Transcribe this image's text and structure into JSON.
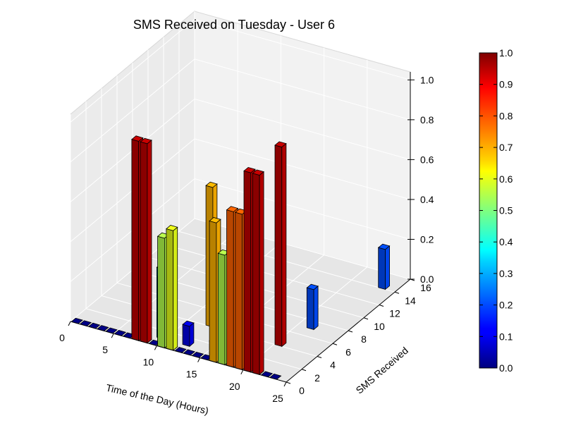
{
  "chart_data": {
    "type": "bar3d",
    "title": "SMS Received on Tuesday - User 6",
    "xlabel": "Time of the Day (Hours)",
    "ylabel": "SMS Received",
    "zlabel": "",
    "x_ticks": [
      "0",
      "5",
      "10",
      "15",
      "20",
      "25"
    ],
    "y_ticks": [
      "0",
      "2",
      "4",
      "6",
      "8",
      "10",
      "12",
      "14",
      "16"
    ],
    "z_ticks": [
      "0.0",
      "0.2",
      "0.4",
      "0.6",
      "0.8",
      "1.0"
    ],
    "colorbar": {
      "ticks": [
        "0.0",
        "0.1",
        "0.2",
        "0.3",
        "0.4",
        "0.5",
        "0.6",
        "0.7",
        "0.8",
        "0.9",
        "1.0"
      ],
      "colormap": "jet",
      "range": [
        0,
        1
      ]
    },
    "bars": [
      {
        "hour": 7,
        "sms": 0,
        "value": 1.0
      },
      {
        "hour": 8,
        "sms": 0,
        "value": 1.0
      },
      {
        "hour": 9,
        "sms": 1,
        "value": 0.35
      },
      {
        "hour": 10,
        "sms": 0,
        "value": 0.35
      },
      {
        "hour": 10,
        "sms": 0,
        "value": 0.55
      },
      {
        "hour": 11,
        "sms": 0,
        "value": 0.6
      },
      {
        "hour": 12,
        "sms": 1,
        "value": 0.1
      },
      {
        "hour": 12,
        "sms": 4,
        "value": 0.7
      },
      {
        "hour": 16,
        "sms": 0,
        "value": 0.1
      },
      {
        "hour": 16,
        "sms": 0,
        "value": 0.7
      },
      {
        "hour": 17,
        "sms": 0,
        "value": 0.55
      },
      {
        "hour": 18,
        "sms": 0,
        "value": 0.78
      },
      {
        "hour": 19,
        "sms": 0,
        "value": 0.78
      },
      {
        "hour": 20,
        "sms": 0,
        "value": 1.0
      },
      {
        "hour": 21,
        "sms": 0,
        "value": 1.0
      },
      {
        "hour": 20,
        "sms": 4,
        "value": 1.0
      },
      {
        "hour": 21,
        "sms": 7,
        "value": 0.2
      },
      {
        "hour": 23,
        "sms": 14,
        "value": 0.2
      }
    ]
  }
}
